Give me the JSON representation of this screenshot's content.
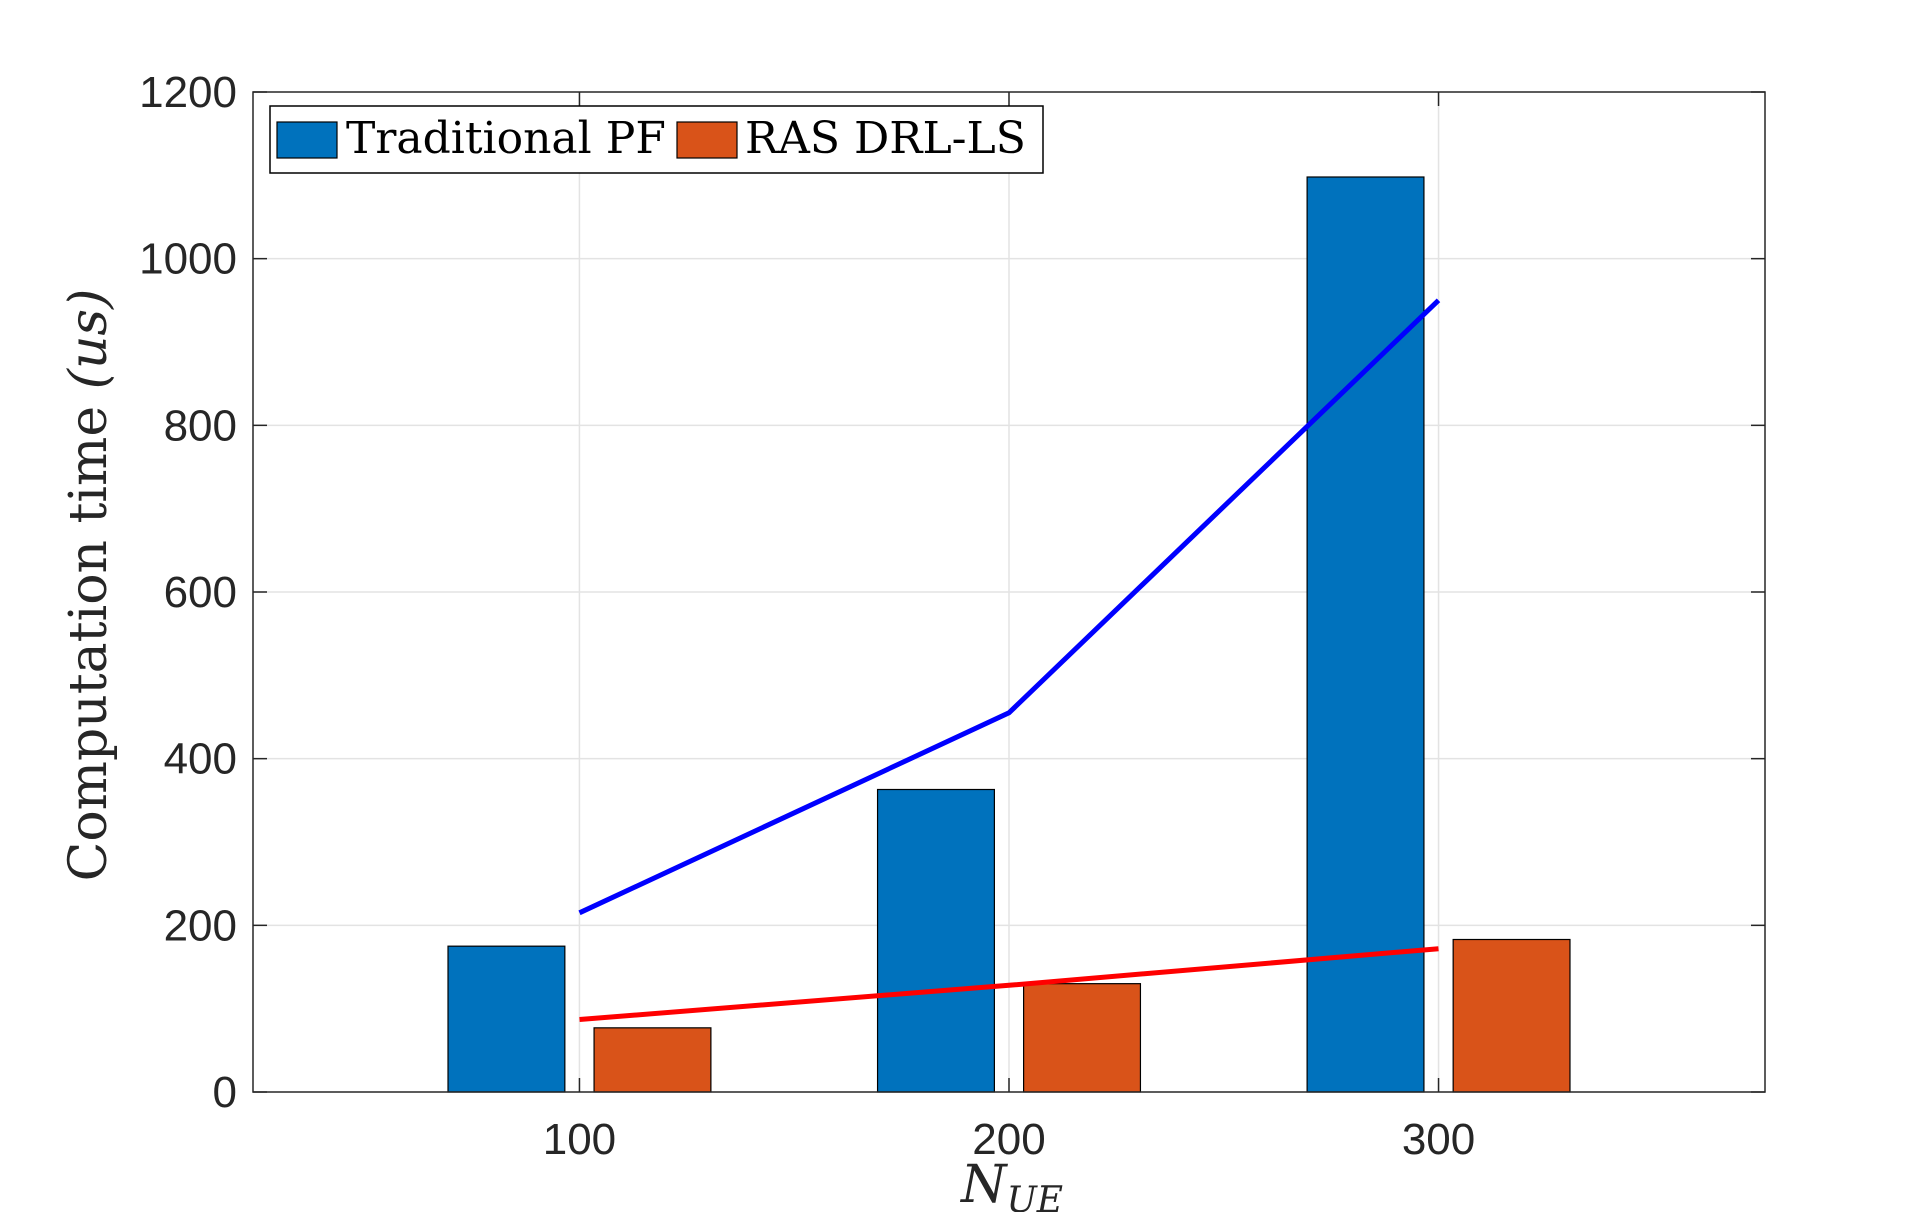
{
  "chart_data": {
    "type": "bar",
    "categories": [
      "100",
      "200",
      "300"
    ],
    "x": [
      100,
      200,
      300
    ],
    "series": [
      {
        "name": "Traditional PF",
        "kind": "bar",
        "color": "#0072BD",
        "values": [
          175,
          363,
          1098
        ]
      },
      {
        "name": "RAS DRL-LS",
        "kind": "bar",
        "color": "#D95319",
        "values": [
          77,
          130,
          183
        ]
      }
    ],
    "lines": [
      {
        "color": "#0000FF",
        "values": [
          215,
          455,
          950
        ]
      },
      {
        "color": "#FF0000",
        "values": [
          87,
          128,
          172
        ]
      }
    ],
    "xlabel": {
      "main": "N",
      "sub": "UE"
    },
    "ylabel": {
      "text": "Computation time ",
      "unit": "(us)"
    },
    "ylim": [
      0,
      1200
    ],
    "xlim": [
      24,
      376
    ],
    "yticks": [
      0,
      200,
      400,
      600,
      800,
      1000,
      1200
    ],
    "xticks": [
      100,
      200,
      300
    ],
    "grid": true,
    "legend_position": "top-left",
    "legend_orientation": "horizontal"
  }
}
